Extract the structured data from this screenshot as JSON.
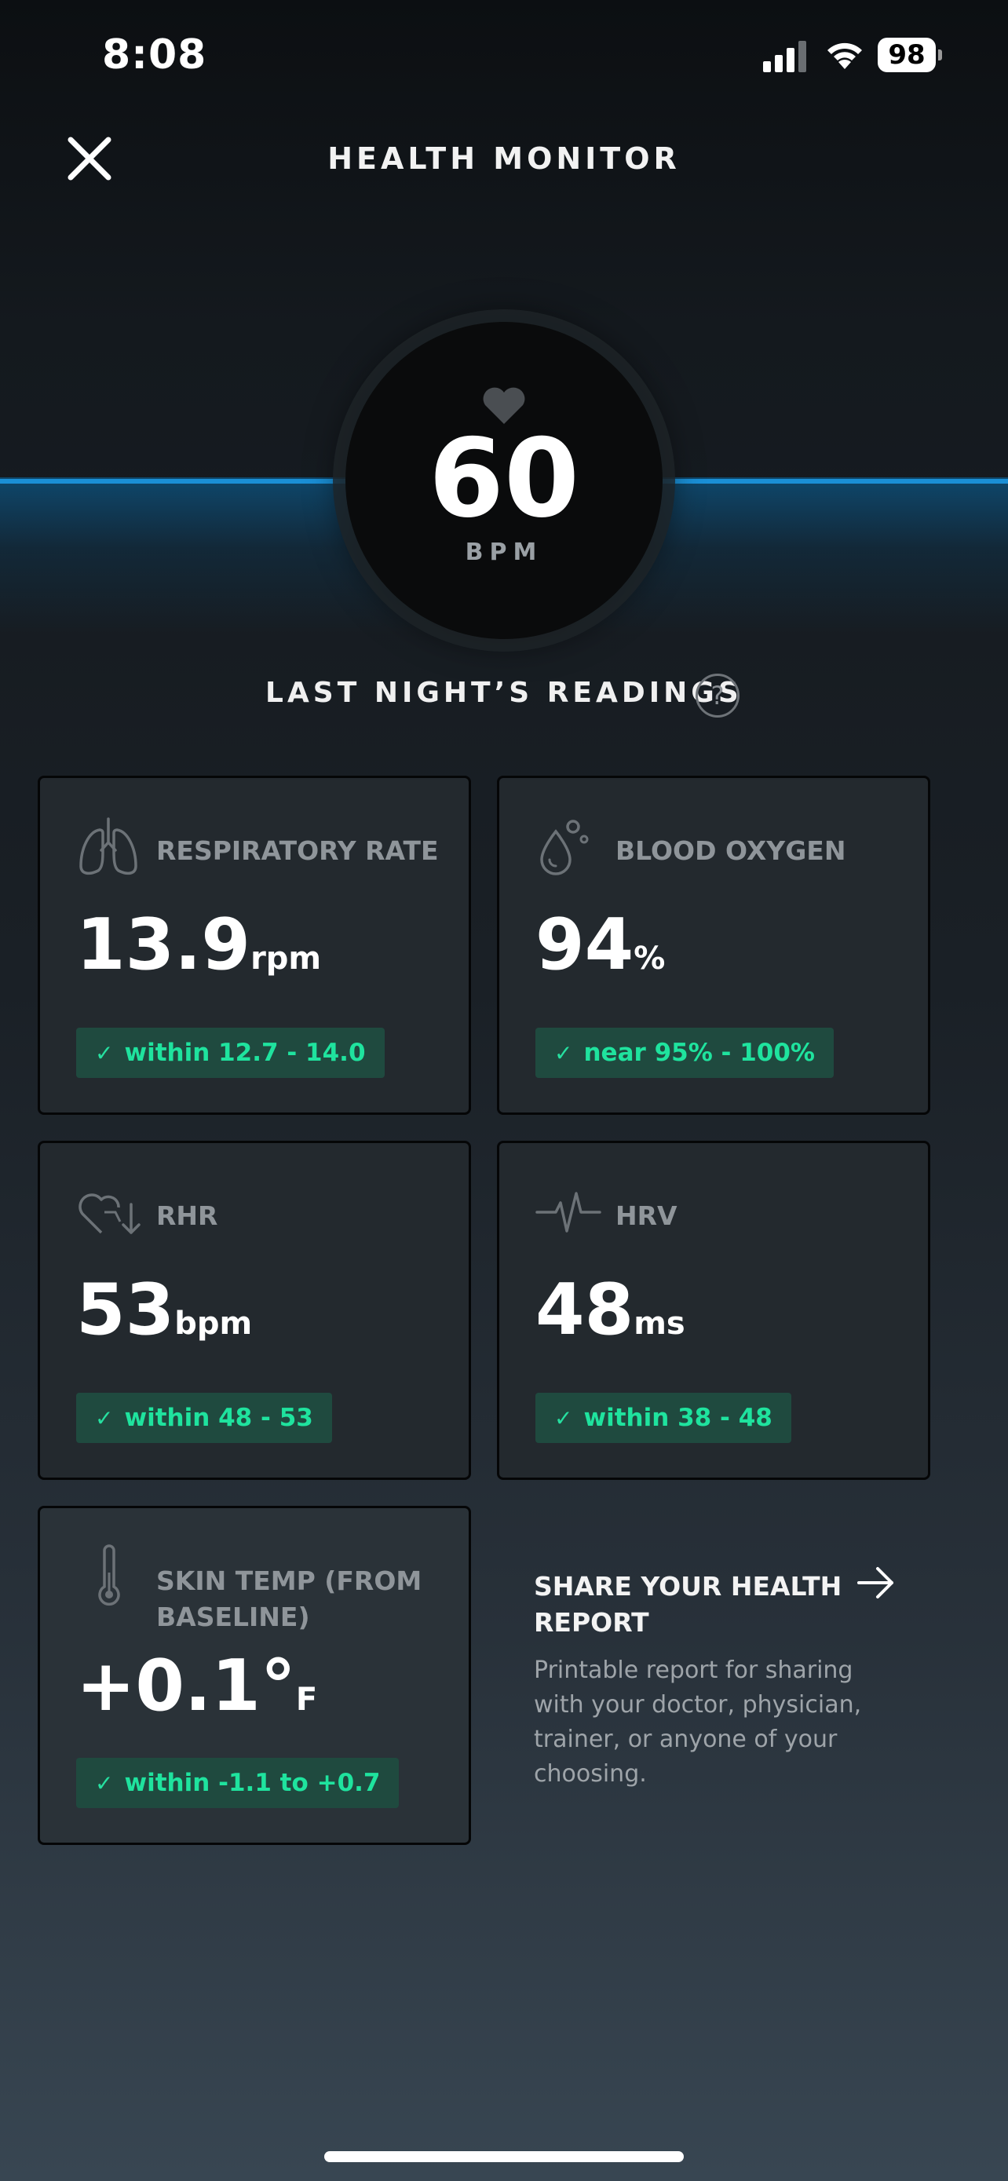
{
  "status_bar": {
    "time": "8:08",
    "battery": "98"
  },
  "header": {
    "title": "HEALTH MONITOR"
  },
  "heart_rate": {
    "value": "60",
    "unit": "BPM"
  },
  "readings": {
    "title": "LAST NIGHT’S READINGS",
    "help": "?",
    "metrics": [
      {
        "label": "RESPIRATORY RATE",
        "value": "13.9",
        "unit": "rpm",
        "range": "within 12.7 - 14.0"
      },
      {
        "label": "BLOOD OXYGEN",
        "value": "94",
        "unit": "%",
        "range": "near 95% - 100%"
      },
      {
        "label": "RHR",
        "value": "53",
        "unit": "bpm",
        "range": "within 48 - 53"
      },
      {
        "label": "HRV",
        "value": "48",
        "unit": "ms",
        "range": "within 38 - 48"
      },
      {
        "label": "SKIN TEMP (FROM BASELINE)",
        "value": "+0.1°",
        "unit": "F",
        "range": "within -1.1 to +0.7"
      }
    ]
  },
  "share": {
    "title": "SHARE YOUR HEALTH REPORT",
    "description": "Printable report for sharing with your doctor, physician, trainer, or anyone of your choosing."
  },
  "colors": {
    "accent_blue": "#1a8fd6",
    "in_range_green": "#1fe39e",
    "card_bg": "#23292e"
  },
  "icons": [
    "signal-icon",
    "wifi-icon",
    "close-icon",
    "heart-icon",
    "lungs-icon",
    "blood-drop-icon",
    "heart-down-icon",
    "hrv-pulse-icon",
    "thermometer-icon",
    "arrow-right-icon",
    "check-icon"
  ]
}
